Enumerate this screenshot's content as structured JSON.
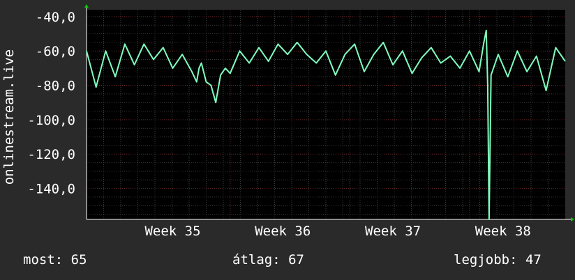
{
  "chart_data": {
    "type": "line",
    "ylabel": "onlinestream.live",
    "ylim": [
      -158,
      -36
    ],
    "yticks": [
      {
        "value": -40,
        "label": "-40,0"
      },
      {
        "value": -60,
        "label": "-60,0"
      },
      {
        "value": -80,
        "label": "-80,0"
      },
      {
        "value": -100,
        "label": "-100,0"
      },
      {
        "value": -120,
        "label": "-120,0"
      },
      {
        "value": -140,
        "label": "-140,0"
      }
    ],
    "xlim": [
      0,
      1
    ],
    "xticks": [
      {
        "value": 0.18,
        "label": "Week 35"
      },
      {
        "value": 0.41,
        "label": "Week 36"
      },
      {
        "value": 0.64,
        "label": "Week 37"
      },
      {
        "value": 0.87,
        "label": "Week 38"
      }
    ],
    "series": [
      {
        "color": "#7fffbf",
        "x": [
          0.0,
          0.02,
          0.04,
          0.06,
          0.08,
          0.1,
          0.12,
          0.14,
          0.16,
          0.18,
          0.2,
          0.22,
          0.23,
          0.235,
          0.24,
          0.25,
          0.26,
          0.27,
          0.28,
          0.29,
          0.3,
          0.32,
          0.34,
          0.36,
          0.38,
          0.4,
          0.42,
          0.44,
          0.46,
          0.48,
          0.5,
          0.52,
          0.54,
          0.56,
          0.58,
          0.6,
          0.62,
          0.64,
          0.66,
          0.68,
          0.7,
          0.72,
          0.74,
          0.76,
          0.78,
          0.8,
          0.82,
          0.83,
          0.835,
          0.838,
          0.841,
          0.845,
          0.86,
          0.88,
          0.9,
          0.92,
          0.94,
          0.96,
          0.98,
          1.0
        ],
        "y": [
          -60,
          -81,
          -60,
          -75,
          -56,
          -68,
          -56,
          -65,
          -58,
          -70,
          -62,
          -72,
          -78,
          -70,
          -67,
          -78,
          -80,
          -90,
          -74,
          -70,
          -73,
          -60,
          -67,
          -58,
          -66,
          -56,
          -62,
          -55,
          -62,
          -67,
          -60,
          -74,
          -62,
          -56,
          -72,
          -62,
          -55,
          -68,
          -60,
          -73,
          -64,
          -58,
          -67,
          -63,
          -70,
          -60,
          -72,
          -55,
          -48,
          -80,
          -158,
          -74,
          -62,
          -75,
          -60,
          -72,
          -63,
          -83,
          -58,
          -66
        ]
      }
    ]
  },
  "stats": {
    "current": "most: 65",
    "average": "átlag: 67",
    "best": "legjobb: 47"
  }
}
